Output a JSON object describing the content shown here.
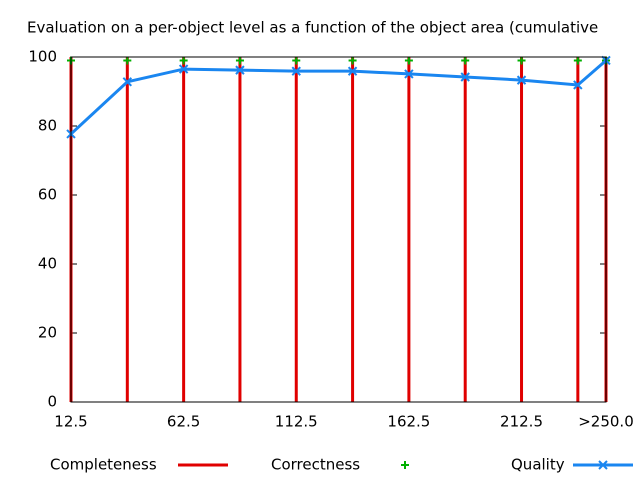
{
  "chart_data": {
    "type": "line",
    "title": "Evaluation on a per-object level as a function of the object area (cumulative",
    "x": [
      12.5,
      37.5,
      62.5,
      87.5,
      112.5,
      137.5,
      162.5,
      187.5,
      212.5,
      237.5,
      250
    ],
    "xlim": [
      12.5,
      250
    ],
    "xticks": [
      12.5,
      62.5,
      112.5,
      162.5,
      212.5,
      {
        "value": 250,
        "label": ">250.0"
      }
    ],
    "ylim": [
      0,
      100
    ],
    "yticks": [
      0,
      20,
      40,
      60,
      80,
      100
    ],
    "legend": "bottom",
    "series": [
      {
        "name": "Completeness",
        "color": "#e00000",
        "style": "impulses",
        "values": [
          100,
          100,
          100,
          100,
          100,
          100,
          100,
          100,
          100,
          100,
          100
        ]
      },
      {
        "name": "Correctness",
        "color": "#00b000",
        "style": "points",
        "values": [
          99,
          99,
          99,
          99,
          99,
          99,
          99,
          99,
          99,
          99,
          99
        ]
      },
      {
        "name": "Quality",
        "color": "#1a86f0",
        "style": "linespoints",
        "values": [
          77.7,
          92.8,
          96.5,
          96.2,
          95.9,
          95.9,
          95.1,
          94.2,
          93.3,
          91.9,
          99
        ]
      }
    ]
  }
}
